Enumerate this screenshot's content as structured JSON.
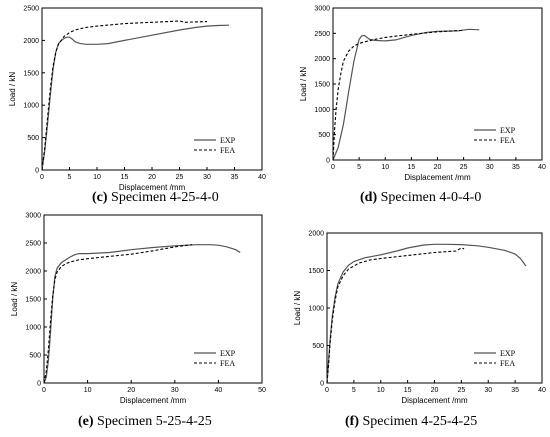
{
  "chart_data": [
    {
      "type": "line",
      "caption_letter": "(c)",
      "caption_text": "Specimen 4-25-4-0",
      "xlabel": "Displacement /mm",
      "ylabel": "Load / kN",
      "xlim": [
        0,
        40
      ],
      "ylim": [
        0,
        2500
      ],
      "xticks": [
        0,
        5,
        10,
        15,
        20,
        25,
        30,
        35,
        40
      ],
      "yticks": [
        0,
        500,
        1000,
        1500,
        2000,
        2500
      ],
      "legend": "bottom-right",
      "grid": false,
      "series": [
        {
          "name": "EXP",
          "style": "solid",
          "x": [
            0,
            0.5,
            1,
            1.5,
            2,
            2.5,
            3,
            3.5,
            4,
            4.5,
            5,
            5.5,
            6,
            7,
            8,
            10,
            12,
            15,
            20,
            25,
            28,
            30,
            32,
            34
          ],
          "y": [
            0,
            300,
            700,
            1150,
            1550,
            1820,
            1950,
            2000,
            2030,
            2050,
            2050,
            2020,
            1980,
            1950,
            1940,
            1940,
            1950,
            2000,
            2080,
            2160,
            2200,
            2220,
            2230,
            2235
          ]
        },
        {
          "name": "FEA",
          "style": "dashed",
          "x": [
            0,
            0.5,
            1,
            1.5,
            2,
            2.5,
            3,
            3.5,
            4,
            5,
            6,
            8,
            10,
            15,
            20,
            25,
            26,
            28,
            30
          ],
          "y": [
            0,
            350,
            800,
            1250,
            1600,
            1820,
            1940,
            2000,
            2060,
            2120,
            2160,
            2200,
            2220,
            2260,
            2280,
            2300,
            2280,
            2285,
            2290
          ]
        }
      ]
    },
    {
      "type": "line",
      "caption_letter": "(d)",
      "caption_text": "Specimen 4-0-4-0",
      "xlabel": "Displacement /mm",
      "ylabel": "Load / kN",
      "xlim": [
        0,
        40
      ],
      "ylim": [
        0,
        3000
      ],
      "xticks": [
        0,
        5,
        10,
        15,
        20,
        25,
        30,
        35,
        40
      ],
      "yticks": [
        0,
        500,
        1000,
        1500,
        2000,
        2500,
        3000
      ],
      "legend": "bottom-right",
      "grid": false,
      "series": [
        {
          "name": "EXP",
          "style": "solid",
          "x": [
            0,
            1,
            2,
            3,
            4,
            5,
            5.5,
            6,
            6.5,
            7,
            8,
            10,
            12,
            15,
            18,
            20,
            22,
            24,
            26,
            28
          ],
          "y": [
            0,
            250,
            700,
            1350,
            1950,
            2380,
            2450,
            2460,
            2420,
            2380,
            2360,
            2350,
            2370,
            2460,
            2520,
            2540,
            2545,
            2550,
            2580,
            2570
          ]
        },
        {
          "name": "FEA",
          "style": "dashed",
          "x": [
            0,
            0.3,
            0.6,
            1,
            1.5,
            2,
            3,
            4,
            5,
            6,
            8,
            10,
            15,
            20,
            25
          ],
          "y": [
            0,
            600,
            1000,
            1400,
            1700,
            1950,
            2150,
            2250,
            2300,
            2330,
            2380,
            2420,
            2480,
            2530,
            2560
          ]
        }
      ]
    },
    {
      "type": "line",
      "caption_letter": "(e)",
      "caption_text": "Specimen 5-25-4-25",
      "xlabel": "Displacement /mm",
      "ylabel": "Load / kN",
      "xlim": [
        0,
        50
      ],
      "ylim": [
        0,
        3000
      ],
      "xticks": [
        0,
        10,
        20,
        30,
        40,
        50
      ],
      "yticks": [
        0,
        500,
        1000,
        1500,
        2000,
        2500,
        3000
      ],
      "legend": "bottom-right",
      "grid": false,
      "series": [
        {
          "name": "EXP",
          "style": "solid",
          "x": [
            0,
            0.5,
            1,
            1.5,
            2,
            2.5,
            3,
            4,
            5,
            6,
            7,
            8,
            10,
            15,
            20,
            25,
            30,
            35,
            38,
            40,
            42,
            44,
            45
          ],
          "y": [
            0,
            100,
            400,
            900,
            1500,
            1900,
            2050,
            2150,
            2200,
            2250,
            2290,
            2310,
            2310,
            2330,
            2380,
            2420,
            2450,
            2470,
            2470,
            2460,
            2430,
            2380,
            2330
          ]
        },
        {
          "name": "FEA",
          "style": "dashed",
          "x": [
            0,
            0.5,
            1,
            1.5,
            2,
            2.5,
            3,
            4,
            5,
            6,
            8,
            10,
            15,
            20,
            25,
            30,
            34
          ],
          "y": [
            0,
            200,
            600,
            1100,
            1550,
            1850,
            1980,
            2080,
            2130,
            2160,
            2200,
            2220,
            2260,
            2300,
            2360,
            2430,
            2470
          ]
        }
      ]
    },
    {
      "type": "line",
      "caption_letter": "(f)",
      "caption_text": "Specimen 4-25-4-25",
      "xlabel": "Displacement /mm",
      "ylabel": "Load / kN",
      "xlim": [
        0,
        40
      ],
      "ylim": [
        0,
        2000
      ],
      "xticks": [
        0,
        5,
        10,
        15,
        20,
        25,
        30,
        35,
        40
      ],
      "yticks": [
        0,
        500,
        1000,
        1500,
        2000
      ],
      "legend": "bottom-right",
      "grid": false,
      "series": [
        {
          "name": "EXP",
          "style": "solid",
          "x": [
            0,
            0.3,
            0.6,
            1,
            1.5,
            2,
            3,
            4,
            5,
            7,
            10,
            13,
            15,
            18,
            20,
            22,
            25,
            28,
            30,
            33,
            35,
            36,
            37
          ],
          "y": [
            0,
            300,
            600,
            900,
            1150,
            1320,
            1480,
            1570,
            1620,
            1670,
            1710,
            1760,
            1800,
            1840,
            1850,
            1850,
            1845,
            1830,
            1810,
            1770,
            1720,
            1660,
            1560
          ]
        },
        {
          "name": "FEA",
          "style": "dashed",
          "x": [
            0,
            0.3,
            0.6,
            1,
            1.5,
            2,
            3,
            4,
            5,
            6,
            8,
            10,
            15,
            20,
            24,
            25,
            25.5
          ],
          "y": [
            0,
            250,
            550,
            850,
            1100,
            1280,
            1430,
            1520,
            1560,
            1600,
            1640,
            1660,
            1700,
            1740,
            1760,
            1800,
            1790
          ]
        }
      ]
    }
  ]
}
